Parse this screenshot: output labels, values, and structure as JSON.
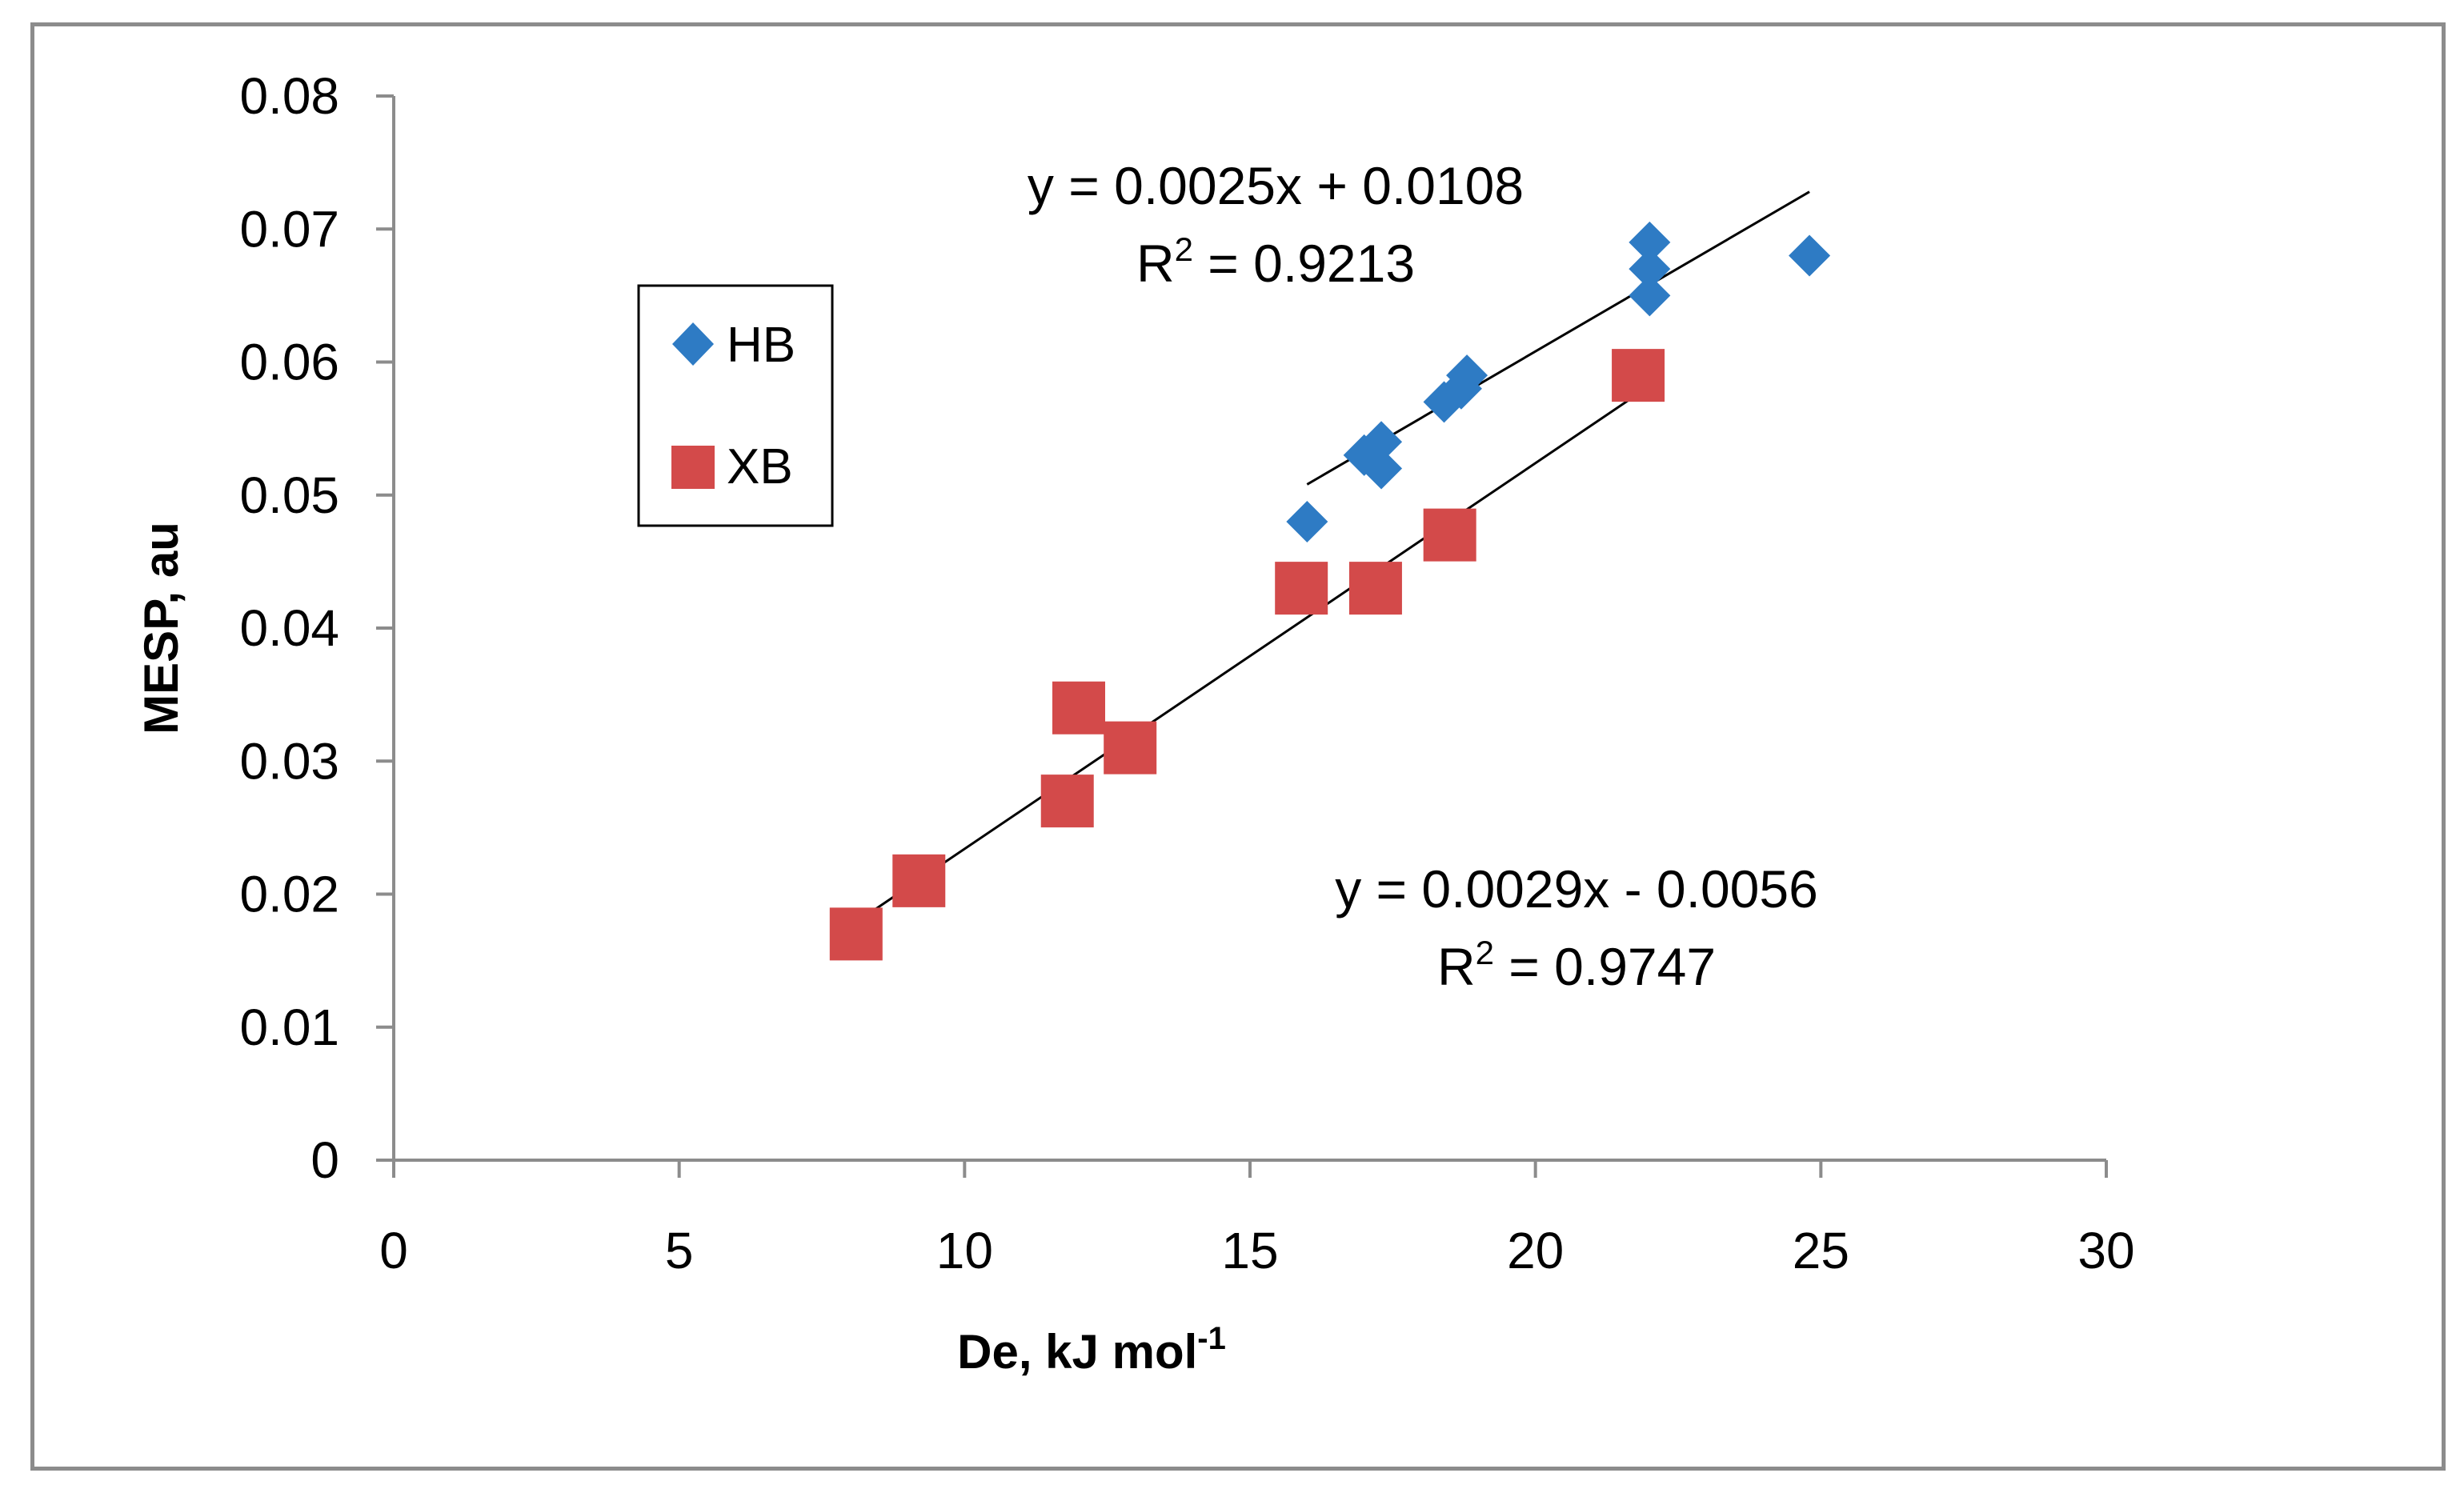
{
  "chart_data": {
    "type": "scatter",
    "title": "",
    "xlabel": "De, kJ mol",
    "xlabel_superscript": "-1",
    "ylabel": "MESP, au",
    "xlim": [
      0,
      30
    ],
    "ylim": [
      0,
      0.08
    ],
    "xticks": [
      "0",
      "5",
      "10",
      "15",
      "20",
      "25",
      "30"
    ],
    "yticks": [
      "0",
      "0.01",
      "0.02",
      "0.03",
      "0.04",
      "0.05",
      "0.06",
      "0.07",
      "0.08"
    ],
    "grid": false,
    "legend_position": "left-top",
    "series": [
      {
        "name": "HB",
        "marker": "diamond",
        "color": "#2e7bc4",
        "points": [
          [
            16.0,
            0.048
          ],
          [
            17.0,
            0.053
          ],
          [
            17.3,
            0.054
          ],
          [
            17.3,
            0.052
          ],
          [
            18.4,
            0.057
          ],
          [
            18.7,
            0.058
          ],
          [
            18.8,
            0.059
          ],
          [
            22.0,
            0.069
          ],
          [
            22.0,
            0.067
          ],
          [
            22.0,
            0.065
          ],
          [
            24.8,
            0.068
          ]
        ],
        "trendline": {
          "x": [
            16.0,
            24.8
          ],
          "slope": 0.0025,
          "intercept": 0.0108
        },
        "equation": "y = 0.0025x + 0.0108",
        "r2_prefix": "R",
        "r2_value": " = 0.9213"
      },
      {
        "name": "XB",
        "marker": "square",
        "color": "#d34a4a",
        "points": [
          [
            8.1,
            0.017
          ],
          [
            9.2,
            0.021
          ],
          [
            11.8,
            0.027
          ],
          [
            12.0,
            0.034
          ],
          [
            12.9,
            0.031
          ],
          [
            15.9,
            0.043
          ],
          [
            17.2,
            0.043
          ],
          [
            18.5,
            0.047
          ],
          [
            21.8,
            0.059
          ]
        ],
        "trendline": {
          "x": [
            8.0,
            21.8
          ],
          "slope": 0.0029,
          "intercept": -0.0056
        },
        "equation": "y = 0.0029x - 0.0056",
        "r2_prefix": "R",
        "r2_value": " = 0.9747"
      }
    ],
    "superscript_two": "2"
  }
}
